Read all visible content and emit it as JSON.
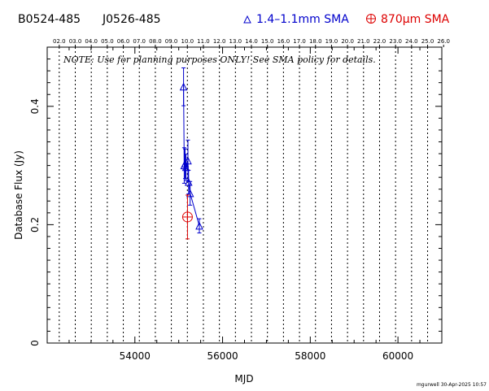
{
  "header": {
    "source_b1950": "B0524-485",
    "source_j2000": "J0526-485",
    "legend_band3": "1.4–1.1mm SMA",
    "legend_band7": "870μm SMA"
  },
  "note": "NOTE: Use for planning purposes ONLY!  See SMA policy for details.",
  "footer_stamp": "mgurwell 30-Apr-2025 10:57",
  "colors": {
    "band3": "#0000cc",
    "band7": "#dd0000",
    "axis": "#000000"
  },
  "chart_data": {
    "type": "scatter",
    "xlabel": "MJD",
    "ylabel": "Database Flux (Jy)",
    "xlim": [
      52000,
      61000
    ],
    "ylim": [
      0,
      0.5
    ],
    "x_ticks": [
      54000,
      56000,
      58000,
      60000
    ],
    "x_tick_labels": [
      "54000",
      "56000",
      "58000",
      "60000"
    ],
    "y_ticks": [
      0,
      0.2,
      0.4
    ],
    "y_tick_labels": [
      "0",
      "0.2",
      "0.4"
    ],
    "top_axis": {
      "labels": [
        "02.0",
        "03.0",
        "04.0",
        "05.0",
        "06.0",
        "07.0",
        "08.0",
        "09.0",
        "10.0",
        "11.0",
        "12.0",
        "13.0",
        "14.0",
        "15.0",
        "16.0",
        "17.0",
        "18.0",
        "19.0",
        "20.0",
        "21.0",
        "22.0",
        "23.0",
        "24.0",
        "25.0",
        "26.0"
      ],
      "first_mjd": 52275,
      "step_mjd": 365.25
    },
    "grid": "vertical dotted at year marks",
    "series": [
      {
        "name": "1.4–1.1mm SMA",
        "marker": "triangle",
        "connected": true,
        "points": [
          {
            "x": 55110,
            "y": 0.433,
            "err": 0.032
          },
          {
            "x": 55125,
            "y": 0.3,
            "err": 0.03
          },
          {
            "x": 55145,
            "y": 0.303,
            "err": 0.025
          },
          {
            "x": 55165,
            "y": 0.297,
            "err": 0.022
          },
          {
            "x": 55210,
            "y": 0.308,
            "err": 0.035
          },
          {
            "x": 55225,
            "y": 0.272,
            "err": 0.02
          },
          {
            "x": 55260,
            "y": 0.253,
            "err": 0.02
          },
          {
            "x": 55470,
            "y": 0.198,
            "err": 0.012
          }
        ]
      },
      {
        "name": "870μm SMA",
        "marker": "circle-plus",
        "connected": false,
        "points": [
          {
            "x": 55200,
            "y": 0.213,
            "err": 0.037
          }
        ]
      }
    ]
  }
}
